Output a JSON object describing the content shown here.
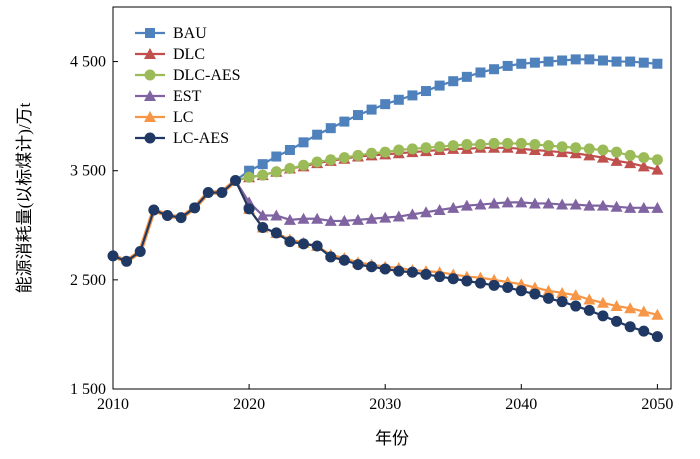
{
  "chart_data": {
    "type": "line",
    "title": "",
    "xlabel": "年份",
    "ylabel": "能源消耗量(以标煤计)/万t",
    "xlim": [
      2010,
      2051
    ],
    "ylim": [
      1500,
      5000
    ],
    "xticks": [
      2010,
      2020,
      2030,
      2040,
      2050
    ],
    "yticks": [
      1500,
      2500,
      3500,
      4500
    ],
    "xtick_labels": [
      "2010",
      "2020",
      "2030",
      "2040",
      "2050"
    ],
    "ytick_labels": [
      "1 500",
      "2 500",
      "3 500",
      "4 500"
    ],
    "grid": false,
    "legend_position": "top-left",
    "historical": {
      "x": [
        2010,
        2011,
        2012,
        2013,
        2014,
        2015,
        2016,
        2017,
        2018,
        2019
      ],
      "y": [
        2720,
        2670,
        2760,
        3140,
        3090,
        3070,
        3160,
        3300,
        3300,
        3410
      ]
    },
    "series": [
      {
        "name": "BAU",
        "color": "#4f81bd",
        "marker": "square",
        "x": [
          2020,
          2021,
          2022,
          2023,
          2024,
          2025,
          2026,
          2027,
          2028,
          2029,
          2030,
          2031,
          2032,
          2033,
          2034,
          2035,
          2036,
          2037,
          2038,
          2039,
          2040,
          2041,
          2042,
          2043,
          2044,
          2045,
          2046,
          2047,
          2048,
          2049,
          2050
        ],
        "y": [
          3500,
          3560,
          3630,
          3690,
          3760,
          3830,
          3890,
          3950,
          4010,
          4060,
          4110,
          4150,
          4190,
          4230,
          4280,
          4320,
          4360,
          4400,
          4430,
          4460,
          4480,
          4490,
          4500,
          4510,
          4520,
          4520,
          4510,
          4500,
          4500,
          4490,
          4480
        ]
      },
      {
        "name": "DLC",
        "color": "#c0504d",
        "marker": "triangle",
        "x": [
          2020,
          2021,
          2022,
          2023,
          2024,
          2025,
          2026,
          2027,
          2028,
          2029,
          2030,
          2031,
          2032,
          2033,
          2034,
          2035,
          2036,
          2037,
          2038,
          2039,
          2040,
          2041,
          2042,
          2043,
          2044,
          2045,
          2046,
          2047,
          2048,
          2049,
          2050
        ],
        "y": [
          3440,
          3460,
          3490,
          3520,
          3540,
          3570,
          3590,
          3610,
          3630,
          3640,
          3650,
          3660,
          3670,
          3680,
          3690,
          3700,
          3700,
          3710,
          3710,
          3710,
          3700,
          3690,
          3680,
          3670,
          3660,
          3640,
          3620,
          3590,
          3570,
          3540,
          3510
        ]
      },
      {
        "name": "DLC-AES",
        "color": "#9bbb59",
        "marker": "circle",
        "x": [
          2020,
          2021,
          2022,
          2023,
          2024,
          2025,
          2026,
          2027,
          2028,
          2029,
          2030,
          2031,
          2032,
          2033,
          2034,
          2035,
          2036,
          2037,
          2038,
          2039,
          2040,
          2041,
          2042,
          2043,
          2044,
          2045,
          2046,
          2047,
          2048,
          2049,
          2050
        ],
        "y": [
          3440,
          3460,
          3490,
          3520,
          3550,
          3580,
          3600,
          3620,
          3640,
          3660,
          3670,
          3690,
          3700,
          3710,
          3720,
          3730,
          3740,
          3740,
          3750,
          3750,
          3750,
          3740,
          3730,
          3720,
          3710,
          3700,
          3690,
          3670,
          3640,
          3620,
          3600
        ]
      },
      {
        "name": "EST",
        "color": "#8064a2",
        "marker": "triangle",
        "x": [
          2020,
          2021,
          2022,
          2023,
          2024,
          2025,
          2026,
          2027,
          2028,
          2029,
          2030,
          2031,
          2032,
          2033,
          2034,
          2035,
          2036,
          2037,
          2038,
          2039,
          2040,
          2041,
          2042,
          2043,
          2044,
          2045,
          2046,
          2047,
          2048,
          2049,
          2050
        ],
        "y": [
          3210,
          3090,
          3090,
          3050,
          3060,
          3060,
          3040,
          3040,
          3050,
          3060,
          3070,
          3080,
          3100,
          3120,
          3140,
          3160,
          3180,
          3190,
          3200,
          3210,
          3210,
          3200,
          3200,
          3190,
          3190,
          3180,
          3180,
          3170,
          3160,
          3160,
          3160
        ]
      },
      {
        "name": "LC",
        "color": "#f79646",
        "marker": "triangle",
        "x": [
          2020,
          2021,
          2022,
          2023,
          2024,
          2025,
          2026,
          2027,
          2028,
          2029,
          2030,
          2031,
          2032,
          2033,
          2034,
          2035,
          2036,
          2037,
          2038,
          2039,
          2040,
          2041,
          2042,
          2043,
          2044,
          2045,
          2046,
          2047,
          2048,
          2049,
          2050
        ],
        "y": [
          3150,
          2980,
          2930,
          2870,
          2840,
          2810,
          2730,
          2700,
          2660,
          2640,
          2620,
          2610,
          2590,
          2580,
          2570,
          2550,
          2530,
          2520,
          2500,
          2480,
          2460,
          2430,
          2400,
          2380,
          2360,
          2320,
          2290,
          2260,
          2240,
          2210,
          2180
        ]
      },
      {
        "name": "LC-AES",
        "color": "#1f3864",
        "marker": "circle",
        "x": [
          2020,
          2021,
          2022,
          2023,
          2024,
          2025,
          2026,
          2027,
          2028,
          2029,
          2030,
          2031,
          2032,
          2033,
          2034,
          2035,
          2036,
          2037,
          2038,
          2039,
          2040,
          2041,
          2042,
          2043,
          2044,
          2045,
          2046,
          2047,
          2048,
          2049,
          2050
        ],
        "y": [
          3150,
          2980,
          2930,
          2850,
          2830,
          2810,
          2710,
          2680,
          2640,
          2620,
          2600,
          2580,
          2570,
          2550,
          2530,
          2510,
          2490,
          2470,
          2450,
          2430,
          2400,
          2370,
          2330,
          2300,
          2260,
          2220,
          2170,
          2120,
          2070,
          2030,
          1980
        ]
      }
    ]
  }
}
